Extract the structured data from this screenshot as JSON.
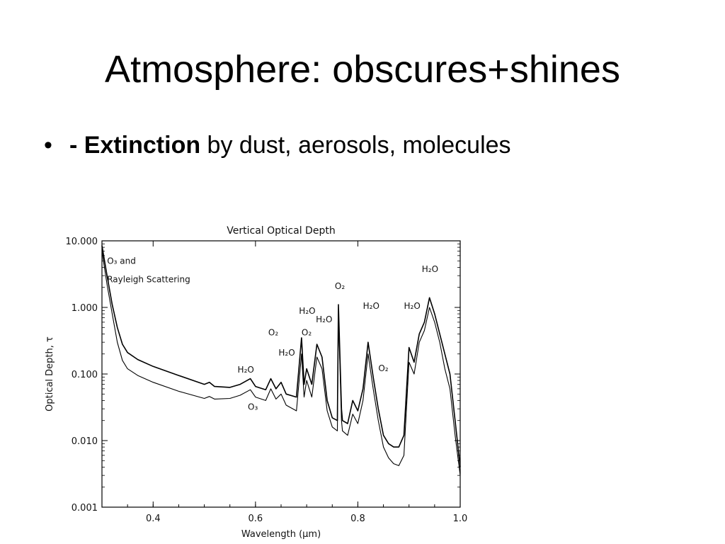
{
  "slide": {
    "title": "Atmosphere: obscures+shines",
    "bullet": {
      "marker": "•",
      "bold": "- Extinction",
      "rest": " by dust, aerosols, molecules"
    }
  },
  "chart_data": {
    "type": "line",
    "title": "Vertical Optical Depth",
    "xlabel": "Wavelength (µm)",
    "ylabel": "Optical Depth, τ",
    "xlim": [
      0.3,
      1.0
    ],
    "ylim": [
      0.001,
      10.0
    ],
    "yscale": "log",
    "x_ticks": [
      0.4,
      0.6,
      0.8,
      1.0
    ],
    "x_tick_labels": [
      "0.4",
      "0.6",
      "0.8",
      "1.0"
    ],
    "y_ticks": [
      0.001,
      0.01,
      0.1,
      1.0,
      10.0
    ],
    "y_tick_labels": [
      "0.001",
      "0.010",
      "0.100",
      "1.000",
      "10.000"
    ],
    "grid": false,
    "series": [
      {
        "points": [
          [
            0.3,
            8.5
          ],
          [
            0.31,
            3.0
          ],
          [
            0.32,
            1.1
          ],
          [
            0.33,
            0.5
          ],
          [
            0.34,
            0.28
          ],
          [
            0.35,
            0.21
          ],
          [
            0.37,
            0.165
          ],
          [
            0.4,
            0.13
          ],
          [
            0.45,
            0.095
          ],
          [
            0.5,
            0.07
          ],
          [
            0.51,
            0.075
          ],
          [
            0.52,
            0.065
          ],
          [
            0.55,
            0.063
          ],
          [
            0.57,
            0.07
          ],
          [
            0.59,
            0.085
          ],
          [
            0.6,
            0.065
          ],
          [
            0.62,
            0.058
          ],
          [
            0.63,
            0.085
          ],
          [
            0.64,
            0.06
          ],
          [
            0.65,
            0.075
          ],
          [
            0.66,
            0.05
          ],
          [
            0.68,
            0.045
          ],
          [
            0.69,
            0.35
          ],
          [
            0.695,
            0.07
          ],
          [
            0.7,
            0.12
          ],
          [
            0.71,
            0.07
          ],
          [
            0.72,
            0.28
          ],
          [
            0.73,
            0.18
          ],
          [
            0.74,
            0.04
          ],
          [
            0.75,
            0.022
          ],
          [
            0.76,
            0.02
          ],
          [
            0.762,
            1.1
          ],
          [
            0.768,
            0.03
          ],
          [
            0.77,
            0.02
          ],
          [
            0.78,
            0.018
          ],
          [
            0.79,
            0.04
          ],
          [
            0.8,
            0.028
          ],
          [
            0.81,
            0.06
          ],
          [
            0.82,
            0.3
          ],
          [
            0.83,
            0.09
          ],
          [
            0.84,
            0.03
          ],
          [
            0.85,
            0.012
          ],
          [
            0.86,
            0.009
          ],
          [
            0.87,
            0.008
          ],
          [
            0.88,
            0.008
          ],
          [
            0.89,
            0.012
          ],
          [
            0.9,
            0.25
          ],
          [
            0.91,
            0.15
          ],
          [
            0.92,
            0.4
          ],
          [
            0.93,
            0.6
          ],
          [
            0.94,
            1.4
          ],
          [
            0.95,
            0.8
          ],
          [
            0.96,
            0.4
          ],
          [
            0.97,
            0.2
          ],
          [
            0.98,
            0.1
          ],
          [
            0.99,
            0.02
          ],
          [
            1.0,
            0.004
          ]
        ]
      },
      {
        "points": [
          [
            0.3,
            7.0
          ],
          [
            0.31,
            2.2
          ],
          [
            0.32,
            0.8
          ],
          [
            0.33,
            0.3
          ],
          [
            0.34,
            0.16
          ],
          [
            0.35,
            0.12
          ],
          [
            0.37,
            0.095
          ],
          [
            0.4,
            0.075
          ],
          [
            0.45,
            0.055
          ],
          [
            0.5,
            0.043
          ],
          [
            0.51,
            0.046
          ],
          [
            0.52,
            0.042
          ],
          [
            0.55,
            0.043
          ],
          [
            0.57,
            0.048
          ],
          [
            0.59,
            0.058
          ],
          [
            0.6,
            0.045
          ],
          [
            0.62,
            0.04
          ],
          [
            0.63,
            0.06
          ],
          [
            0.64,
            0.042
          ],
          [
            0.65,
            0.05
          ],
          [
            0.66,
            0.034
          ],
          [
            0.68,
            0.028
          ],
          [
            0.69,
            0.2
          ],
          [
            0.695,
            0.045
          ],
          [
            0.7,
            0.08
          ],
          [
            0.71,
            0.045
          ],
          [
            0.72,
            0.18
          ],
          [
            0.73,
            0.12
          ],
          [
            0.74,
            0.028
          ],
          [
            0.75,
            0.016
          ],
          [
            0.76,
            0.014
          ],
          [
            0.762,
            0.8
          ],
          [
            0.768,
            0.02
          ],
          [
            0.77,
            0.014
          ],
          [
            0.78,
            0.012
          ],
          [
            0.79,
            0.025
          ],
          [
            0.8,
            0.018
          ],
          [
            0.81,
            0.04
          ],
          [
            0.82,
            0.2
          ],
          [
            0.83,
            0.06
          ],
          [
            0.84,
            0.02
          ],
          [
            0.85,
            0.008
          ],
          [
            0.86,
            0.0055
          ],
          [
            0.87,
            0.0045
          ],
          [
            0.88,
            0.0042
          ],
          [
            0.89,
            0.006
          ],
          [
            0.9,
            0.15
          ],
          [
            0.91,
            0.1
          ],
          [
            0.92,
            0.3
          ],
          [
            0.93,
            0.45
          ],
          [
            0.94,
            1.0
          ],
          [
            0.95,
            0.6
          ],
          [
            0.96,
            0.3
          ],
          [
            0.97,
            0.12
          ],
          [
            0.98,
            0.06
          ],
          [
            0.99,
            0.012
          ],
          [
            1.0,
            0.003
          ]
        ]
      }
    ],
    "annotations": [
      {
        "text": "O₃ and",
        "x": 0.31,
        "y": 4.5
      },
      {
        "text": "Rayleigh Scattering",
        "x": 0.31,
        "y": 2.4
      },
      {
        "text": "H₂O",
        "x": 0.565,
        "y": 0.105
      },
      {
        "text": "O₃",
        "x": 0.585,
        "y": 0.029
      },
      {
        "text": "O₂",
        "x": 0.625,
        "y": 0.38
      },
      {
        "text": "H₂O",
        "x": 0.645,
        "y": 0.19
      },
      {
        "text": "H₂O",
        "x": 0.685,
        "y": 0.8
      },
      {
        "text": "O₂",
        "x": 0.69,
        "y": 0.38
      },
      {
        "text": "H₂O",
        "x": 0.718,
        "y": 0.6
      },
      {
        "text": "O₂",
        "x": 0.755,
        "y": 1.9
      },
      {
        "text": "H₂O",
        "x": 0.81,
        "y": 0.95
      },
      {
        "text": "O₂",
        "x": 0.84,
        "y": 0.11
      },
      {
        "text": "H₂O",
        "x": 0.89,
        "y": 0.95
      },
      {
        "text": "H₂O",
        "x": 0.925,
        "y": 3.4
      }
    ]
  }
}
